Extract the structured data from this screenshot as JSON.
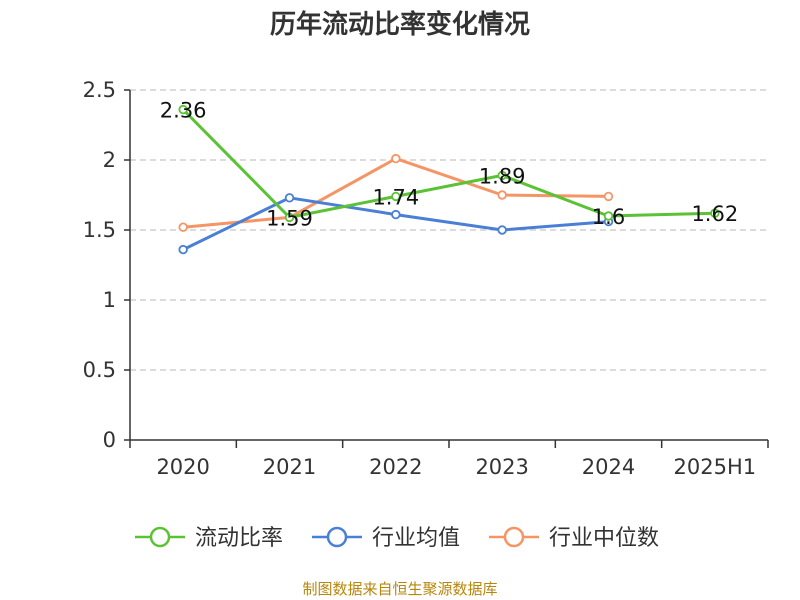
{
  "title": "历年流动比率变化情况",
  "source": "制图数据来自恒生聚源数据库",
  "chart_data": {
    "type": "line",
    "title": "历年流动比率变化情况",
    "categories": [
      "2020",
      "2021",
      "2022",
      "2023",
      "2024",
      "2025H1"
    ],
    "ylim": [
      0,
      2.5
    ],
    "yticks": [
      "0",
      "0.5",
      "1",
      "1.5",
      "2",
      "2.5"
    ],
    "grid": true,
    "legend_position": "bottom",
    "series": [
      {
        "name": "流动比率",
        "color": "#5bc236",
        "values": [
          2.36,
          1.59,
          1.74,
          1.89,
          1.6,
          1.62
        ],
        "labels": [
          "2.36",
          "1.59",
          "1.74",
          "1.89",
          "1.6",
          "1.62"
        ]
      },
      {
        "name": "行业均值",
        "color": "#4a7fd6",
        "values": [
          1.36,
          1.73,
          1.61,
          1.5,
          1.56,
          null
        ]
      },
      {
        "name": "行业中位数",
        "color": "#f59565",
        "values": [
          1.52,
          1.59,
          2.01,
          1.75,
          1.74,
          null
        ]
      }
    ]
  }
}
